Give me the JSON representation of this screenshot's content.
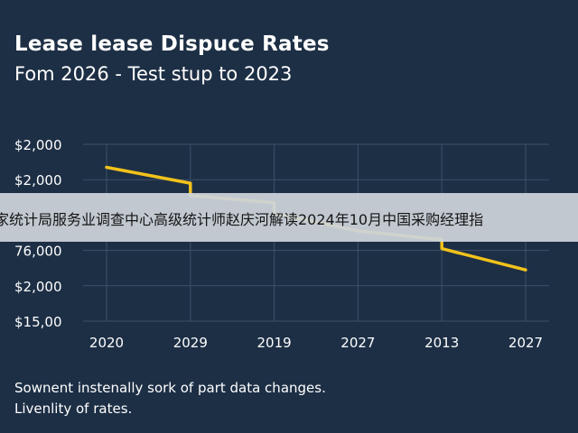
{
  "header": {
    "title": "Lease lease Dispuce Rates",
    "subtitle": "Fom 2026 - Test stup to 2023"
  },
  "overlay": {
    "text": "家统计局服务业调查中心高级统计师赵庆河解读2024年10月中国采购经理指"
  },
  "notes": [
    "Sownent instenally sork of part data changes.",
    "Livenlity of rates."
  ],
  "colors": {
    "background": "#1d2f45",
    "line": "#f2c21b",
    "grid": "#3e5168"
  },
  "chart_data": {
    "type": "line",
    "title": "Lease lease Dispuce Rates",
    "subtitle": "Fom 2026 - Test stup to 2023",
    "categories": [
      "2020",
      "2029",
      "2019",
      "2027",
      "2013",
      "2027"
    ],
    "y_tick_labels": [
      "$2,000",
      "$2,000",
      "",
      "76,000",
      "$2,000",
      "$15,00"
    ],
    "series": [
      {
        "points": [
          {
            "x": 0.0,
            "y": 4.35
          },
          {
            "x": 1.0,
            "y": 3.9
          },
          {
            "x": 1.0,
            "y": 3.55
          },
          {
            "x": 2.0,
            "y": 3.35
          },
          {
            "x": 2.0,
            "y": 3.05
          },
          {
            "x": 3.0,
            "y": 2.55
          },
          {
            "x": 4.0,
            "y": 2.3
          },
          {
            "x": 4.0,
            "y": 2.05
          },
          {
            "x": 5.0,
            "y": 1.45
          }
        ]
      }
    ],
    "ylim": [
      0,
      5
    ],
    "grid": true,
    "legend": "none"
  }
}
